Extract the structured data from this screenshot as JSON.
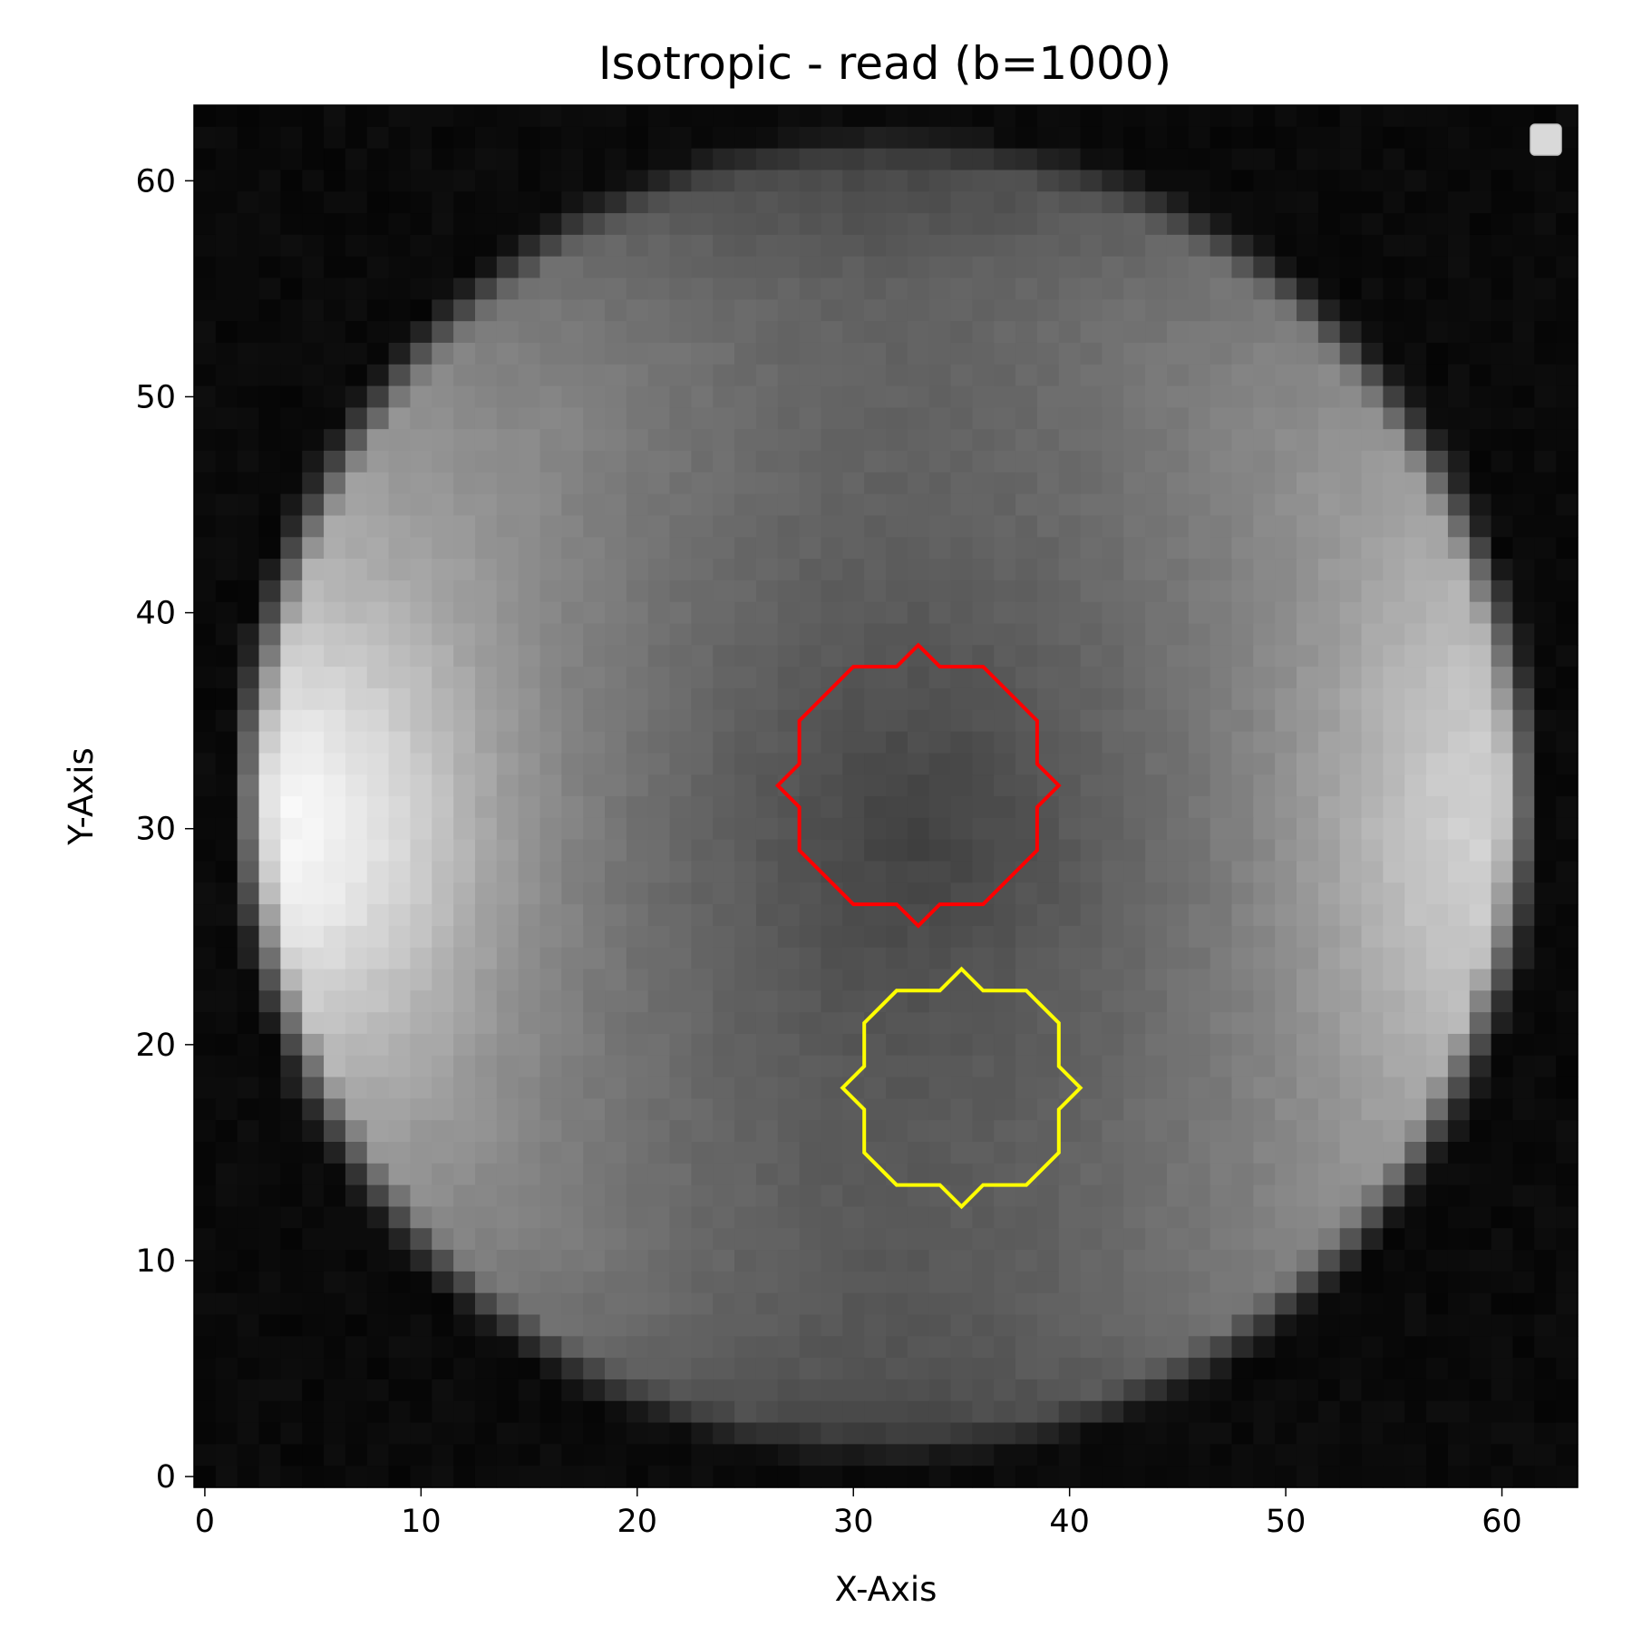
{
  "chart_data": {
    "type": "heatmap",
    "title": "Isotropic - read (b=1000)",
    "xlabel": "X-Axis",
    "ylabel": "Y-Axis",
    "xlim": [
      -0.5,
      63.5
    ],
    "ylim": [
      63.5,
      -0.5
    ],
    "y_inverted": true,
    "xticks": [
      0,
      10,
      20,
      30,
      40,
      50,
      60
    ],
    "yticks": [
      0,
      10,
      20,
      30,
      40,
      50,
      60
    ],
    "colormap": "gray",
    "grid": false,
    "legend": {
      "placement": "upper-right",
      "entries": []
    },
    "image": {
      "rows": 64,
      "cols": 64,
      "phantom_center": [
        31.5,
        31.5
      ],
      "phantom_radius_x": 30.5,
      "phantom_radius_y": 31.5,
      "background_level": 0.02,
      "center_level": 0.25,
      "edge_level": 0.55,
      "left_bright_spot": {
        "center": [
          4,
          33
        ],
        "peak": 0.98
      },
      "right_bright_spot": {
        "center": [
          60,
          33
        ],
        "peak": 0.85
      },
      "dark_core": {
        "center": [
          33,
          33
        ],
        "level": 0.24
      }
    },
    "rois": [
      {
        "name": "",
        "color": "#ffff00",
        "vertices": [
          [
            35,
            12.5
          ],
          [
            36,
            13.5
          ],
          [
            38,
            13.5
          ],
          [
            39.5,
            15
          ],
          [
            39.5,
            17
          ],
          [
            40.5,
            18
          ],
          [
            39.5,
            19
          ],
          [
            39.5,
            21
          ],
          [
            38,
            22.5
          ],
          [
            36,
            22.5
          ],
          [
            35,
            23.5
          ],
          [
            34,
            22.5
          ],
          [
            32,
            22.5
          ],
          [
            30.5,
            21
          ],
          [
            30.5,
            19
          ],
          [
            29.5,
            18
          ],
          [
            30.5,
            17
          ],
          [
            30.5,
            15
          ],
          [
            32,
            13.5
          ],
          [
            34,
            13.5
          ]
        ]
      },
      {
        "name": "",
        "color": "#ff0000",
        "vertices": [
          [
            33,
            25.5
          ],
          [
            34,
            26.5
          ],
          [
            36,
            26.5
          ],
          [
            38.5,
            29
          ],
          [
            38.5,
            31
          ],
          [
            39.5,
            32
          ],
          [
            38.5,
            33
          ],
          [
            38.5,
            35
          ],
          [
            36,
            37.5
          ],
          [
            34,
            37.5
          ],
          [
            33,
            38.5
          ],
          [
            32,
            37.5
          ],
          [
            30,
            37.5
          ],
          [
            27.5,
            35
          ],
          [
            27.5,
            33
          ],
          [
            26.5,
            32
          ],
          [
            27.5,
            31
          ],
          [
            27.5,
            29
          ],
          [
            30,
            26.5
          ],
          [
            32,
            26.5
          ]
        ]
      }
    ]
  }
}
